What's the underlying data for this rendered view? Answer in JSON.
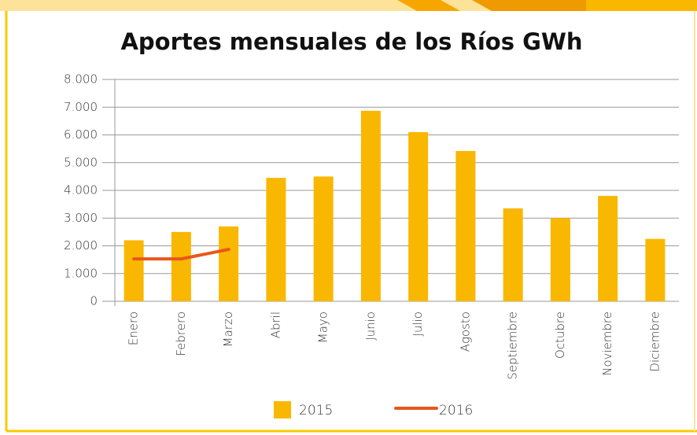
{
  "chart_data": {
    "type": "bar",
    "title": "Aportes mensuales de los Ríos  GWh",
    "categories": [
      "Enero",
      "Febrero",
      "Marzo",
      "Abril",
      "Mayo",
      "Junio",
      "Julio",
      "Agosto",
      "Septiembre",
      "Octubre",
      "Noviembre",
      "Diciembre"
    ],
    "series": [
      {
        "name": "2015",
        "type": "bar",
        "color": "#f9b700",
        "values": [
          2200,
          2500,
          2700,
          4450,
          4500,
          6870,
          6100,
          5420,
          3350,
          3000,
          3800,
          2250
        ]
      },
      {
        "name": "2016",
        "type": "line",
        "color": "#e9571b",
        "values": [
          1530,
          1530,
          1870,
          null,
          null,
          null,
          null,
          null,
          null,
          null,
          null,
          null
        ]
      }
    ],
    "ylim": [
      0,
      8000
    ],
    "yticks": [
      0,
      {
        "value": 1000,
        "label": "1.000"
      },
      {
        "value": 2000,
        "label": "2.000"
      },
      {
        "value": 3000,
        "label": "3.000"
      },
      {
        "value": 4000,
        "label": "4.000"
      },
      {
        "value": 5000,
        "label": "5.000"
      },
      {
        "value": 6000,
        "label": "6.000"
      },
      {
        "value": 7000,
        "label": "7.000"
      },
      {
        "value": 8000,
        "label": "8.000"
      }
    ],
    "grid": true,
    "legend": "bottom"
  }
}
